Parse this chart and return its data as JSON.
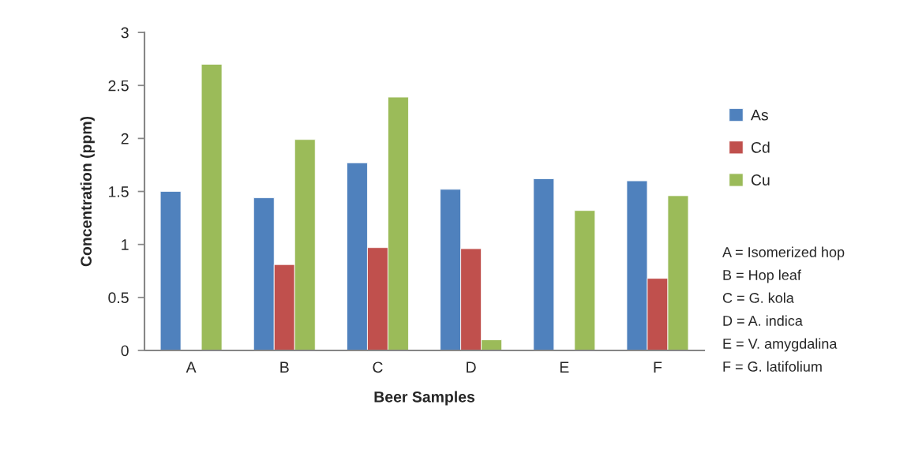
{
  "chart_data": {
    "type": "bar",
    "xlabel": "Beer Samples",
    "ylabel": "Concentration (ppm)",
    "categories": [
      "A",
      "B",
      "C",
      "D",
      "E",
      "F"
    ],
    "series": [
      {
        "name": "As",
        "color": "#4f81bd",
        "values": [
          1.5,
          1.44,
          1.77,
          1.52,
          1.62,
          1.6
        ]
      },
      {
        "name": "Cd",
        "color": "#c0504d",
        "values": [
          null,
          0.81,
          0.97,
          0.96,
          null,
          0.68
        ]
      },
      {
        "name": "Cu",
        "color": "#9bbb59",
        "values": [
          2.7,
          1.99,
          2.39,
          0.1,
          1.32,
          1.46
        ]
      }
    ],
    "ylim": [
      0,
      3
    ],
    "yticks": [
      0,
      0.5,
      1,
      1.5,
      2,
      2.5,
      3
    ],
    "legend": "right",
    "grid": false,
    "annotations": [
      "A = Isomerized hop",
      "B = Hop leaf",
      "C = G. kola",
      "D = A. indica",
      "E = V. amygdalina",
      "F = G. latifolium"
    ]
  }
}
